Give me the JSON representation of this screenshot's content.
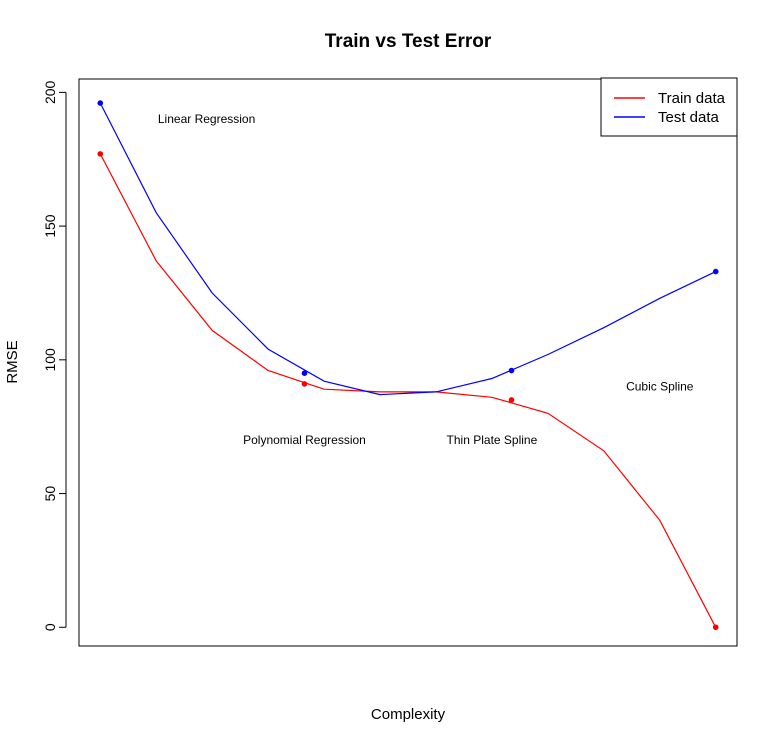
{
  "chart_data": {
    "type": "line",
    "title": "Train vs Test Error",
    "xlabel": "Complexity",
    "ylabel": "RMSE",
    "ylim": [
      -7,
      205
    ],
    "yticks": [
      0,
      50,
      100,
      150,
      200
    ],
    "xlim": [
      0.62,
      12.38
    ],
    "grid": false,
    "x": [
      1,
      2,
      3,
      4,
      5,
      6,
      7,
      8,
      9,
      10,
      11,
      12
    ],
    "series": [
      {
        "name": "Train data",
        "color": "#ff0000",
        "values": [
          177,
          137,
          111,
          96,
          89,
          88,
          88,
          86,
          80,
          66,
          40,
          0
        ]
      },
      {
        "name": "Test data",
        "color": "#0000ff",
        "values": [
          196,
          155,
          125,
          104,
          92,
          87,
          88,
          93,
          102,
          112,
          123,
          133
        ]
      }
    ],
    "highlight_points": [
      {
        "series": "Train data",
        "x": 1,
        "y": 177
      },
      {
        "series": "Train data",
        "x": 4.65,
        "y": 91
      },
      {
        "series": "Train data",
        "x": 8.35,
        "y": 85
      },
      {
        "series": "Train data",
        "x": 12,
        "y": 0
      },
      {
        "series": "Test data",
        "x": 1,
        "y": 196
      },
      {
        "series": "Test data",
        "x": 4.65,
        "y": 95
      },
      {
        "series": "Test data",
        "x": 8.35,
        "y": 96
      },
      {
        "series": "Test data",
        "x": 12,
        "y": 133
      }
    ],
    "annotations": [
      {
        "text": "Linear Regression",
        "x": 2.9,
        "y": 190
      },
      {
        "text": "Polynomial Regression",
        "x": 4.65,
        "y": 70
      },
      {
        "text": "Thin Plate Spline",
        "x": 8.0,
        "y": 70
      },
      {
        "text": "Cubic Spline",
        "x": 11.0,
        "y": 90
      }
    ],
    "legend": {
      "position": "top-right",
      "entries": [
        "Train data",
        "Test data"
      ]
    }
  }
}
